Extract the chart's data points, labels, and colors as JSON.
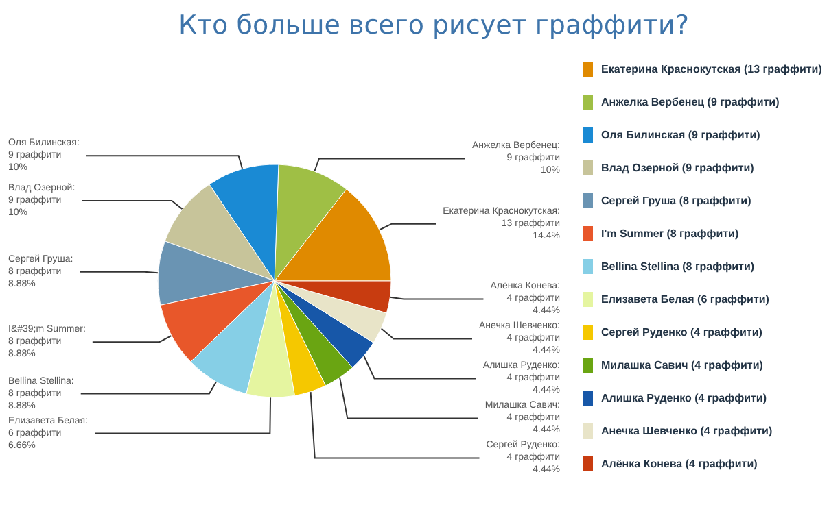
{
  "chart_data": {
    "type": "pie",
    "title": "Кто больше всего рисует граффити?",
    "categories": [
      "Екатерина Краснокутская (13 граффити)",
      "Анжелка Вербенец (9 граффити)",
      "Оля Билинская (9 граффити)",
      "Влад Озерной (9 граффити)",
      "Сергей Груша (8 граффити)",
      "I'm Summer (8 граффити)",
      "Bellina Stellina (8 граффити)",
      "Елизавета Белая (6 граффити)",
      "Сергей Руденко (4 граффити)",
      "Милашка Савич (4 граффити)",
      "Алишка Руденко (4 граффити)",
      "Анечка Шевченко (4 граффити)",
      "Алёнка Конева (4 граффити)"
    ],
    "values": [
      13,
      9,
      9,
      9,
      8,
      8,
      8,
      6,
      4,
      4,
      4,
      4,
      4
    ],
    "value_labels": [
      "Екатерина Краснокутская:\n13 граффити\n14.4%",
      "Анжелка Вербенец:\n9 граффити\n10%",
      "Оля Билинская:\n9 граффити\n10%",
      "Влад Озерной:\n9 граффити\n10%",
      "Сергей Груша:\n8 граффити\n8.88%",
      "I&#39;m Summer:\n8 граффити\n8.88%",
      "Bellina Stellina:\n8 граффити\n8.88%",
      "Елизавета Белая:\n6 граффити\n6.66%",
      "Сергей Руденко:\n4 граффити\n4.44%",
      "Милашка Савич:\n4 граффити\n4.44%",
      "Алишка Руденко:\n4 граффити\n4.44%",
      "Анечка Шевченко:\n4 граффити\n4.44%",
      "Алёнка Конева:\n4 граффити\n4.44%"
    ],
    "colors": [
      "#e08a00",
      "#9fbf45",
      "#1a8ad4",
      "#c7c49a",
      "#6a94b3",
      "#e8572a",
      "#86cfe6",
      "#e5f5a0",
      "#f5c800",
      "#6aa512",
      "#1757a8",
      "#e8e4c8",
      "#c83c10"
    ],
    "legend": "right"
  }
}
